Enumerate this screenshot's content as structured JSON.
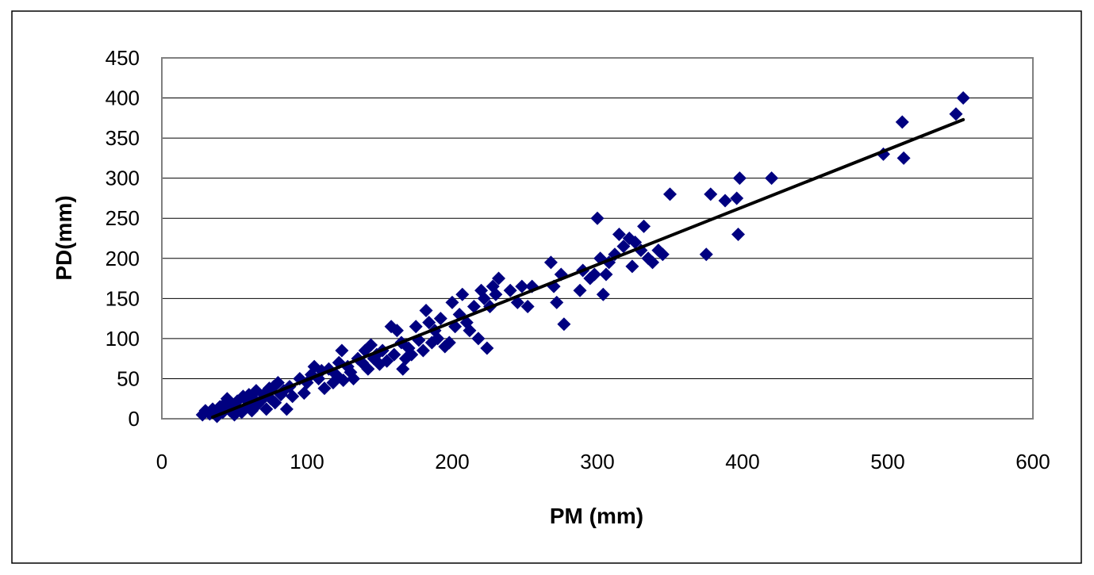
{
  "chart_data": {
    "type": "scatter",
    "title": "",
    "xlabel": "PM (mm)",
    "ylabel": "PD(mm)",
    "xlim": [
      0,
      600
    ],
    "ylim": [
      0,
      450
    ],
    "x_ticks": [
      0,
      100,
      200,
      300,
      400,
      500,
      600
    ],
    "y_ticks": [
      0,
      50,
      100,
      150,
      200,
      250,
      300,
      350,
      400,
      450
    ],
    "grid": "horizontal",
    "legend": "none",
    "marker": "diamond",
    "colors": {
      "marker": "#000080",
      "trendline": "#000000",
      "gridline": "#000000",
      "plot_border": "#808080"
    },
    "trendline": {
      "type": "linear",
      "x": [
        35,
        552
      ],
      "y": [
        2,
        373
      ]
    },
    "points": [
      [
        28,
        5
      ],
      [
        30,
        10
      ],
      [
        33,
        6
      ],
      [
        35,
        12
      ],
      [
        38,
        3
      ],
      [
        40,
        15
      ],
      [
        42,
        8
      ],
      [
        44,
        20
      ],
      [
        45,
        25
      ],
      [
        47,
        10
      ],
      [
        48,
        18
      ],
      [
        50,
        5
      ],
      [
        52,
        22
      ],
      [
        53,
        12
      ],
      [
        55,
        8
      ],
      [
        56,
        28
      ],
      [
        58,
        15
      ],
      [
        60,
        20
      ],
      [
        60,
        30
      ],
      [
        62,
        10
      ],
      [
        63,
        25
      ],
      [
        65,
        35
      ],
      [
        66,
        18
      ],
      [
        68,
        22
      ],
      [
        70,
        30
      ],
      [
        72,
        12
      ],
      [
        74,
        38
      ],
      [
        75,
        25
      ],
      [
        77,
        40
      ],
      [
        78,
        20
      ],
      [
        80,
        45
      ],
      [
        82,
        30
      ],
      [
        84,
        35
      ],
      [
        86,
        12
      ],
      [
        88,
        40
      ],
      [
        90,
        28
      ],
      [
        95,
        50
      ],
      [
        98,
        32
      ],
      [
        100,
        45
      ],
      [
        103,
        55
      ],
      [
        105,
        65
      ],
      [
        108,
        50
      ],
      [
        110,
        60
      ],
      [
        112,
        38
      ],
      [
        115,
        62
      ],
      [
        118,
        45
      ],
      [
        120,
        55
      ],
      [
        122,
        70
      ],
      [
        124,
        85
      ],
      [
        125,
        48
      ],
      [
        128,
        65
      ],
      [
        130,
        58
      ],
      [
        132,
        50
      ],
      [
        135,
        75
      ],
      [
        138,
        70
      ],
      [
        140,
        85
      ],
      [
        142,
        62
      ],
      [
        144,
        92
      ],
      [
        146,
        75
      ],
      [
        148,
        80
      ],
      [
        150,
        68
      ],
      [
        152,
        85
      ],
      [
        155,
        72
      ],
      [
        158,
        115
      ],
      [
        160,
        80
      ],
      [
        162,
        110
      ],
      [
        165,
        95
      ],
      [
        166,
        62
      ],
      [
        168,
        75
      ],
      [
        170,
        88
      ],
      [
        172,
        80
      ],
      [
        175,
        115
      ],
      [
        177,
        98
      ],
      [
        180,
        85
      ],
      [
        182,
        135
      ],
      [
        184,
        120
      ],
      [
        186,
        95
      ],
      [
        188,
        110
      ],
      [
        190,
        100
      ],
      [
        192,
        125
      ],
      [
        195,
        90
      ],
      [
        198,
        95
      ],
      [
        200,
        145
      ],
      [
        202,
        115
      ],
      [
        205,
        130
      ],
      [
        207,
        155
      ],
      [
        210,
        120
      ],
      [
        212,
        110
      ],
      [
        215,
        140
      ],
      [
        218,
        100
      ],
      [
        220,
        160
      ],
      [
        222,
        150
      ],
      [
        224,
        88
      ],
      [
        226,
        140
      ],
      [
        228,
        165
      ],
      [
        230,
        155
      ],
      [
        232,
        175
      ],
      [
        240,
        160
      ],
      [
        245,
        145
      ],
      [
        248,
        165
      ],
      [
        252,
        140
      ],
      [
        255,
        165
      ],
      [
        268,
        195
      ],
      [
        270,
        165
      ],
      [
        272,
        145
      ],
      [
        275,
        180
      ],
      [
        277,
        118
      ],
      [
        288,
        160
      ],
      [
        290,
        185
      ],
      [
        295,
        175
      ],
      [
        298,
        180
      ],
      [
        300,
        250
      ],
      [
        302,
        200
      ],
      [
        304,
        155
      ],
      [
        306,
        180
      ],
      [
        308,
        195
      ],
      [
        312,
        205
      ],
      [
        315,
        230
      ],
      [
        318,
        215
      ],
      [
        322,
        225
      ],
      [
        324,
        190
      ],
      [
        326,
        220
      ],
      [
        330,
        210
      ],
      [
        332,
        240
      ],
      [
        335,
        200
      ],
      [
        338,
        195
      ],
      [
        342,
        210
      ],
      [
        345,
        205
      ],
      [
        350,
        280
      ],
      [
        375,
        205
      ],
      [
        378,
        280
      ],
      [
        388,
        272
      ],
      [
        396,
        275
      ],
      [
        397,
        230
      ],
      [
        398,
        300
      ],
      [
        420,
        300
      ],
      [
        497,
        330
      ],
      [
        510,
        370
      ],
      [
        511,
        325
      ],
      [
        547,
        380
      ],
      [
        552,
        400
      ]
    ]
  }
}
